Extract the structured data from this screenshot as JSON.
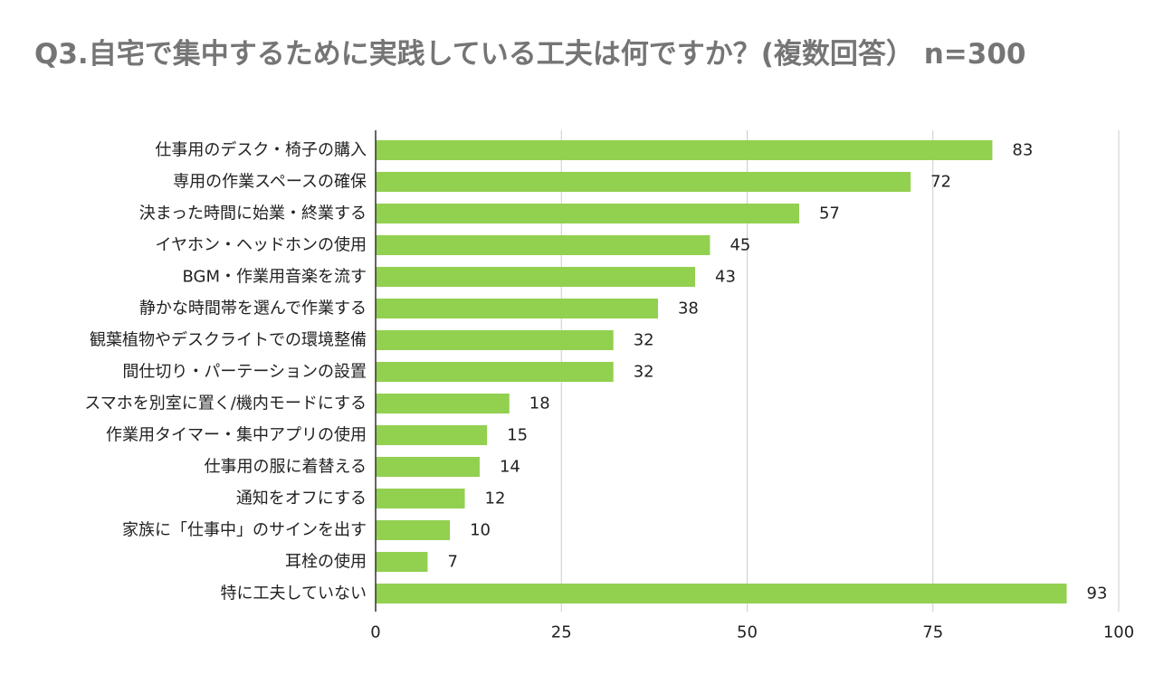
{
  "chart_data": {
    "type": "bar",
    "orientation": "horizontal",
    "title": "Q3.自宅で集中するために実践している工夫は何ですか？(複数回答） n=300",
    "categories": [
      "仕事用のデスク・椅子の購入",
      "専用の作業スペースの確保",
      "決まった時間に始業・終業する",
      "イヤホン・ヘッドホンの使用",
      "BGM・作業用音楽を流す",
      "静かな時間帯を選んで作業する",
      "観葉植物やデスクライトでの環境整備",
      "間仕切り・パーテーションの設置",
      "スマホを別室に置く/機内モードにする",
      "作業用タイマー・集中アプリの使用",
      "仕事用の服に着替える",
      "通知をオフにする",
      "家族に「仕事中」のサインを出す",
      "耳栓の使用",
      "特に工夫していない"
    ],
    "values": [
      83,
      72,
      57,
      45,
      43,
      38,
      32,
      32,
      18,
      15,
      14,
      12,
      10,
      7,
      93
    ],
    "xlim": [
      0,
      100
    ],
    "xticks": [
      0,
      25,
      50,
      75,
      100
    ],
    "grid": true,
    "bar_color": "#92d050",
    "xlabel": "",
    "ylabel": ""
  }
}
